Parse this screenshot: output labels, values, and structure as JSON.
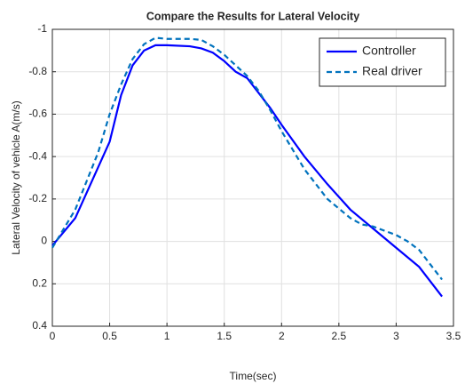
{
  "chart_data": {
    "type": "line",
    "title": "Compare the Results for Lateral Velocity",
    "x_label": "Time(sec)",
    "y_label": "Lateral Velocity of vehicle A(m/s)",
    "xlim": [
      0,
      3.5
    ],
    "xticks": [
      0,
      0.5,
      1,
      1.5,
      2,
      2.5,
      3,
      3.5
    ],
    "ylim": [
      -1,
      0.4
    ],
    "yticks": [
      -1,
      -0.8,
      -0.6,
      -0.4,
      -0.2,
      0,
      0.2,
      0.4
    ],
    "y_reversed": true,
    "grid": true,
    "legend": "top-right",
    "series": [
      {
        "name": "Controller",
        "color": "#0000ff",
        "dash": false,
        "x": [
          0,
          0.2,
          0.5,
          0.6,
          0.7,
          0.8,
          0.9,
          1.0,
          1.2,
          1.3,
          1.4,
          1.5,
          1.6,
          1.7,
          1.8,
          1.9,
          2.0,
          2.2,
          2.4,
          2.6,
          2.8,
          3.0,
          3.2,
          3.4
        ],
        "values": [
          0.02,
          -0.11,
          -0.47,
          -0.69,
          -0.83,
          -0.9,
          -0.925,
          -0.925,
          -0.92,
          -0.91,
          -0.89,
          -0.85,
          -0.8,
          -0.77,
          -0.7,
          -0.63,
          -0.55,
          -0.4,
          -0.27,
          -0.15,
          -0.06,
          0.03,
          0.12,
          0.26
        ]
      },
      {
        "name": "Real driver",
        "color": "#0072bd",
        "dash": true,
        "x": [
          0,
          0.2,
          0.4,
          0.5,
          0.6,
          0.7,
          0.8,
          0.9,
          1.0,
          1.2,
          1.3,
          1.4,
          1.5,
          1.6,
          1.7,
          1.8,
          1.9,
          2.0,
          2.2,
          2.4,
          2.6,
          2.7,
          2.8,
          2.9,
          3.0,
          3.1,
          3.2,
          3.3,
          3.4
        ],
        "values": [
          0.03,
          -0.15,
          -0.42,
          -0.6,
          -0.74,
          -0.86,
          -0.93,
          -0.96,
          -0.955,
          -0.955,
          -0.95,
          -0.92,
          -0.88,
          -0.83,
          -0.78,
          -0.71,
          -0.62,
          -0.52,
          -0.34,
          -0.2,
          -0.11,
          -0.08,
          -0.07,
          -0.05,
          -0.03,
          0.0,
          0.04,
          0.11,
          0.18
        ]
      }
    ]
  }
}
